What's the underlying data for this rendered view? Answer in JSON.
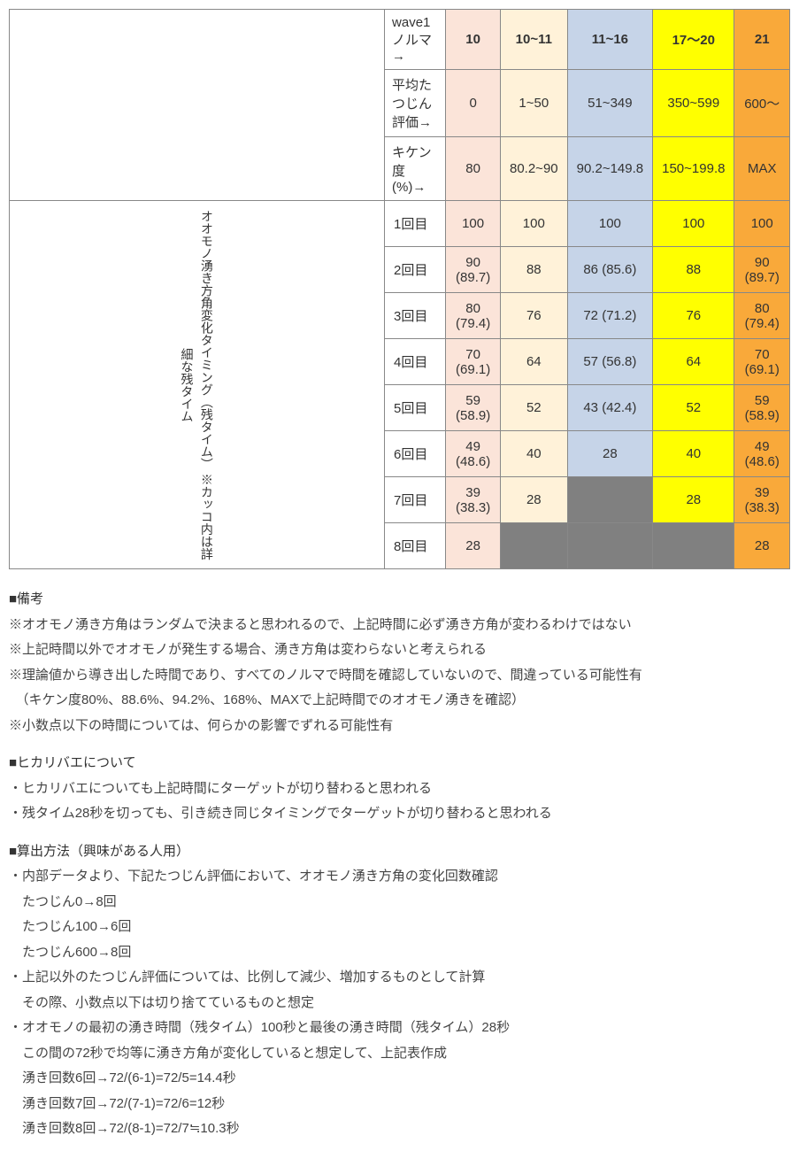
{
  "headers": {
    "row1_label": "wave1ノルマ→",
    "row2_label": "平均たつじん評価→",
    "row3_label": "キケン度(%)→",
    "cols": {
      "c1": {
        "norma": "10",
        "hyoka": "0",
        "kiken": "80"
      },
      "c2": {
        "norma": "10~11",
        "hyoka": "1~50",
        "kiken": "80.2~90"
      },
      "c3": {
        "norma": "11~16",
        "hyoka": "51~349",
        "kiken": "90.2~149.8"
      },
      "c4": {
        "norma": "17〜20",
        "hyoka": "350~599",
        "kiken": "150~199.8"
      },
      "c5": {
        "norma": "21",
        "hyoka": "600〜",
        "kiken": "MAX"
      }
    }
  },
  "side_label": "オオモノ湧き方角変化タイミング（残タイム）\n※カッコ内は詳細な残タイム",
  "rows": {
    "r1": {
      "label": "1回目",
      "c1": "100",
      "c2": "100",
      "c3": "100",
      "c4": "100",
      "c5": "100"
    },
    "r2": {
      "label": "2回目",
      "c1": "90 (89.7)",
      "c2": "88",
      "c3": "86 (85.6)",
      "c4": "88",
      "c5": "90 (89.7)"
    },
    "r3": {
      "label": "3回目",
      "c1": "80 (79.4)",
      "c2": "76",
      "c3": "72 (71.2)",
      "c4": "76",
      "c5": "80 (79.4)"
    },
    "r4": {
      "label": "4回目",
      "c1": "70 (69.1)",
      "c2": "64",
      "c3": "57 (56.8)",
      "c4": "64",
      "c5": "70 (69.1)"
    },
    "r5": {
      "label": "5回目",
      "c1": "59 (58.9)",
      "c2": "52",
      "c3": "43 (42.4)",
      "c4": "52",
      "c5": "59 (58.9)"
    },
    "r6": {
      "label": "6回目",
      "c1": "49 (48.6)",
      "c2": "40",
      "c3": "28",
      "c4": "40",
      "c5": "49 (48.6)"
    },
    "r7": {
      "label": "7回目",
      "c1": "39 (38.3)",
      "c2": "28",
      "c3": "",
      "c4": "28",
      "c5": "39 (38.3)"
    },
    "r8": {
      "label": "8回目",
      "c1": "28",
      "c2": "",
      "c3": "",
      "c4": "",
      "c5": "28"
    }
  },
  "notes": {
    "s1_head": "■備考",
    "s1_l1": "※オオモノ湧き方角はランダムで決まると思われるので、上記時間に必ず湧き方角が変わるわけではない",
    "s1_l2": "※上記時間以外でオオモノが発生する場合、湧き方角は変わらないと考えられる",
    "s1_l3": "※理論値から導き出した時間であり、すべてのノルマで時間を確認していないので、間違っている可能性有",
    "s1_l4": "　（キケン度80%、88.6%、94.2%、168%、MAXで上記時間でのオオモノ湧きを確認）",
    "s1_l5": "※小数点以下の時間については、何らかの影響でずれる可能性有",
    "s2_head": "■ヒカリバエについて",
    "s2_l1": "・ヒカリバエについても上記時間にターゲットが切り替わると思われる",
    "s2_l2": "・残タイム28秒を切っても、引き続き同じタイミングでターゲットが切り替わると思われる",
    "s3_head": "■算出方法（興味がある人用）",
    "s3_l1": "・内部データより、下記たつじん評価において、オオモノ湧き方角の変化回数確認",
    "s3_l2": "　たつじん0→8回",
    "s3_l3": "　たつじん100→6回",
    "s3_l4": "　たつじん600→8回",
    "s3_l5": "・上記以外のたつじん評価については、比例して減少、増加するものとして計算",
    "s3_l6": "　その際、小数点以下は切り捨てているものと想定",
    "s3_l7": "・オオモノの最初の湧き時間（残タイム）100秒と最後の湧き時間（残タイム）28秒",
    "s3_l8": "　この間の72秒で均等に湧き方角が変化していると想定して、上記表作成",
    "s3_l9": "　湧き回数6回→72/(6-1)=72/5=14.4秒",
    "s3_l10": "　湧き回数7回→72/(7-1)=72/6=12秒",
    "s3_l11": "　湧き回数8回→72/(8-1)=72/7≒10.3秒"
  }
}
